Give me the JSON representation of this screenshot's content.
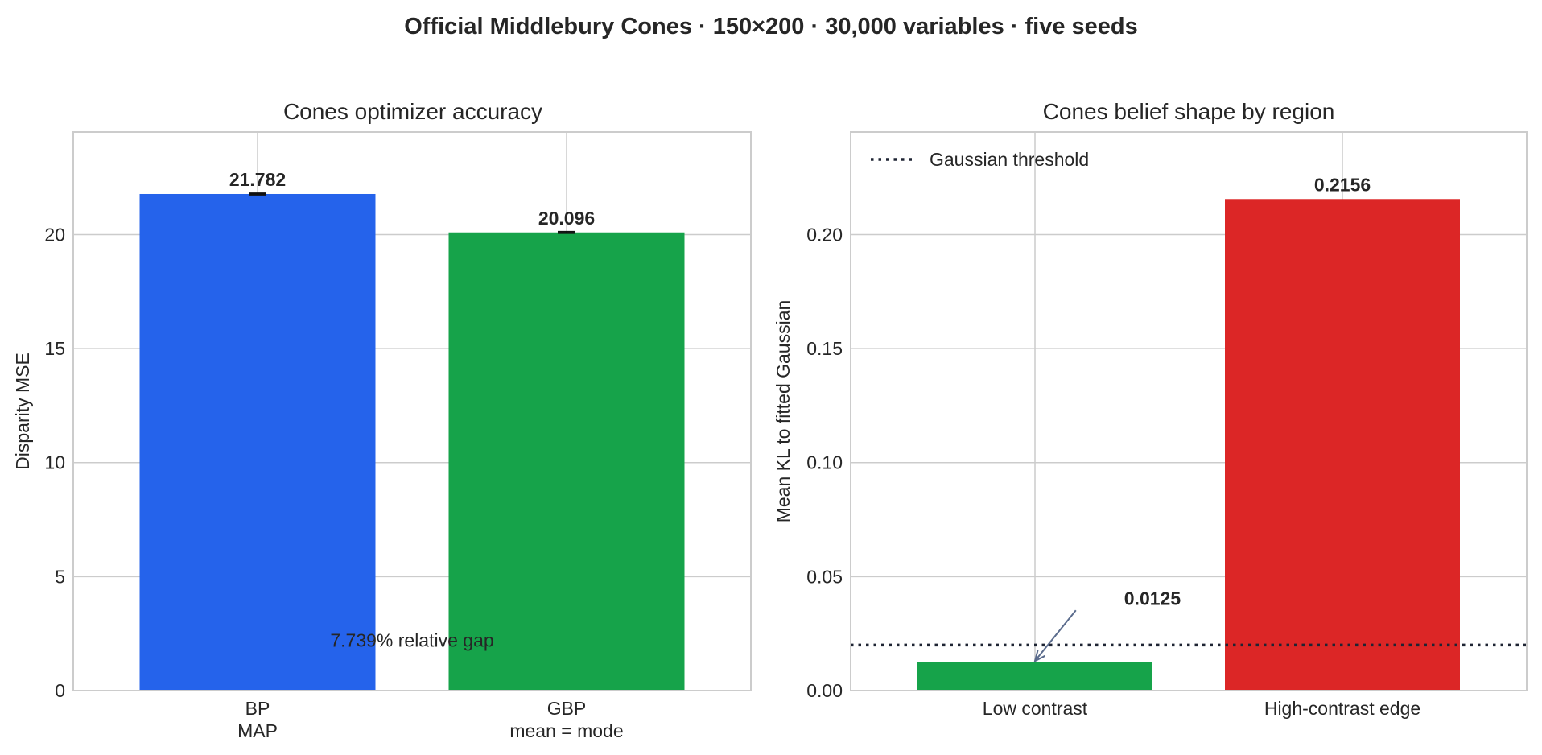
{
  "figure": {
    "suptitle": "Official Middlebury Cones · 150×200 · 30,000 variables · five seeds"
  },
  "chart_data": [
    {
      "type": "bar",
      "title": "Cones optimizer accuracy",
      "xlabel": "",
      "ylabel": "Disparity MSE",
      "categories": [
        [
          "BP",
          "MAP"
        ],
        [
          "GBP",
          "mean = mode"
        ]
      ],
      "values": [
        21.782,
        20.096
      ],
      "value_labels": [
        "21.782",
        "20.096"
      ],
      "error": [
        0.03,
        0.03
      ],
      "colors": [
        "#2563eb",
        "#16a34a"
      ],
      "ylim": [
        0,
        24.5
      ],
      "yticks": [
        0,
        5,
        10,
        15,
        20
      ],
      "ytick_labels": [
        "0",
        "5",
        "10",
        "15",
        "20"
      ],
      "grid": true,
      "annotations": [
        {
          "text": "7.739% relative gap",
          "x": 0.5,
          "y": 2.2
        }
      ]
    },
    {
      "type": "bar",
      "title": "Cones belief shape by region",
      "xlabel": "",
      "ylabel": "Mean KL to fitted Gaussian",
      "categories": [
        [
          "Low contrast"
        ],
        [
          "High-contrast edge"
        ]
      ],
      "values": [
        0.0125,
        0.2156
      ],
      "value_labels": [
        "0.0125",
        "0.2156"
      ],
      "colors": [
        "#16a34a",
        "#dc2626"
      ],
      "ylim": [
        0,
        0.245
      ],
      "yticks": [
        0,
        0.05,
        0.1,
        0.15,
        0.2
      ],
      "ytick_labels": [
        "0.00",
        "0.05",
        "0.10",
        "0.15",
        "0.20"
      ],
      "grid": true,
      "legend_position": "top-left",
      "reference_line": {
        "y": 0.02,
        "label": "Gaussian threshold",
        "style": "dotted",
        "color": "#1e2433"
      },
      "arrow_annotation": {
        "text": "0.0125",
        "text_x": 0.29,
        "text_y": 0.0405,
        "point_x": 0.0,
        "point_y": 0.013,
        "color": "#5a6b8c"
      }
    }
  ]
}
